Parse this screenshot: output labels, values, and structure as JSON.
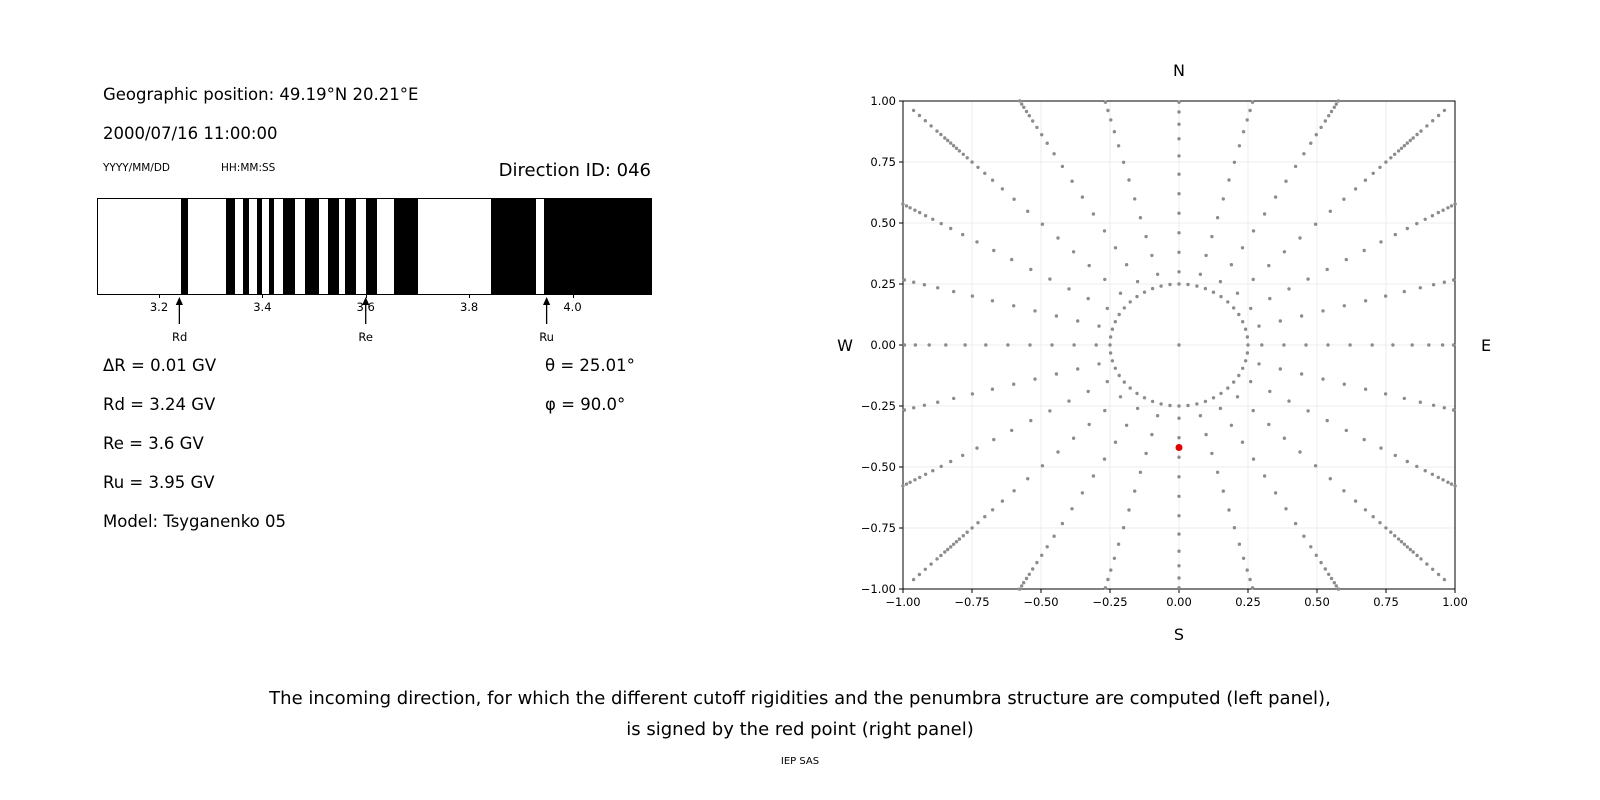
{
  "header": {
    "geo_position": "Geographic position: 49.19°N 20.21°E",
    "datetime": "2000/07/16 11:00:00",
    "date_format_hint": "YYYY/MM/DD",
    "time_format_hint": "HH:MM:SS",
    "direction_id": "Direction ID: 046"
  },
  "parameters": {
    "left": [
      "ΔR = 0.01 GV",
      "Rd = 3.24 GV",
      "Re = 3.6 GV",
      "Ru = 3.95 GV",
      "Model: Tsyganenko 05"
    ],
    "right": [
      "θ = 25.01°",
      "φ = 90.0°"
    ]
  },
  "caption": {
    "line1": "The incoming direction, for which the different cutoff rigidities and the penumbra structure are computed (left panel),",
    "line2": "is signed by the red point (right panel)",
    "credit": "IEP SAS"
  },
  "chart_data": [
    {
      "type": "bar",
      "xlim": [
        3.08,
        4.15
      ],
      "xticks": [
        3.2,
        3.4,
        3.6,
        3.8,
        4.0
      ],
      "xtick_labels": [
        "3.2",
        "3.4",
        "3.6",
        "3.8",
        "4.0"
      ],
      "bar_color": "#000000",
      "forbidden_bands_gv": [
        [
          3.24,
          3.254
        ],
        [
          3.328,
          3.346
        ],
        [
          3.36,
          3.372
        ],
        [
          3.388,
          3.398
        ],
        [
          3.41,
          3.42
        ],
        [
          3.438,
          3.462
        ],
        [
          3.48,
          3.508
        ],
        [
          3.524,
          3.546
        ],
        [
          3.558,
          3.58
        ],
        [
          3.598,
          3.62
        ],
        [
          3.652,
          3.7
        ],
        [
          3.84,
          3.928
        ],
        [
          3.942,
          4.15
        ]
      ],
      "markers": [
        {
          "label": "Rd",
          "value_gv": 3.24
        },
        {
          "label": "Re",
          "value_gv": 3.6
        },
        {
          "label": "Ru",
          "value_gv": 3.95
        }
      ]
    },
    {
      "type": "scatter",
      "xlim": [
        -1,
        1
      ],
      "ylim": [
        -1,
        1
      ],
      "xticks": [
        -1,
        -0.75,
        -0.5,
        -0.25,
        0,
        0.25,
        0.5,
        0.75,
        1
      ],
      "yticks": [
        -1,
        -0.75,
        -0.5,
        -0.25,
        0,
        0.25,
        0.5,
        0.75,
        1
      ],
      "xtick_labels": [
        "−1.00",
        "−0.75",
        "−0.50",
        "−0.25",
        "0.00",
        "0.25",
        "0.50",
        "0.75",
        "1.00"
      ],
      "ytick_labels": [
        "−1.00",
        "−0.75",
        "−0.50",
        "−0.25",
        "0.00",
        "0.25",
        "0.50",
        "0.75",
        "1.00"
      ],
      "direction_labels": {
        "top": "N",
        "bottom": "S",
        "left": "W",
        "right": "E"
      },
      "grid": true,
      "dot_color": "#8c8c8c",
      "rays": {
        "start_deg": 0,
        "step_deg": 15,
        "count": 24,
        "radii": [
          0.3,
          0.38,
          0.46,
          0.54,
          0.62,
          0.7,
          0.775,
          0.845,
          0.905,
          0.955,
          0.995,
          1.03,
          1.06,
          1.085,
          1.105,
          1.125,
          1.14,
          1.155,
          1.17,
          1.185,
          1.2,
          1.22,
          1.24,
          1.27,
          1.3,
          1.33,
          1.36
        ]
      },
      "ring": {
        "radius": 0.25,
        "count": 48
      },
      "center_point": {
        "x": 0,
        "y": 0
      },
      "red_point": {
        "x": 0.0,
        "y": -0.42,
        "color": "#e00000"
      }
    }
  ]
}
